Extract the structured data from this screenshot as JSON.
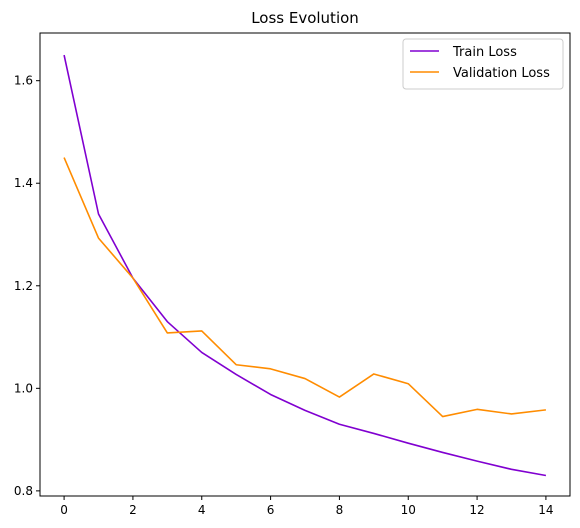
{
  "chart_data": {
    "type": "line",
    "title": "Loss Evolution",
    "xlabel": "",
    "ylabel": "",
    "xlim": [
      -0.7,
      14.7
    ],
    "ylim": [
      0.79,
      1.693
    ],
    "xticks": [
      0,
      2,
      4,
      6,
      8,
      10,
      12,
      14
    ],
    "yticks": [
      0.8,
      1.0,
      1.2,
      1.4,
      1.6
    ],
    "grid": false,
    "legend_position": "top-right",
    "x": [
      0,
      1,
      2,
      3,
      4,
      5,
      6,
      7,
      8,
      9,
      10,
      11,
      12,
      13,
      14
    ],
    "series": [
      {
        "name": "Train Loss",
        "color": "#8000d0",
        "values": [
          1.65,
          1.34,
          1.215,
          1.13,
          1.07,
          1.027,
          0.988,
          0.957,
          0.93,
          0.912,
          0.893,
          0.875,
          0.858,
          0.842,
          0.83
        ]
      },
      {
        "name": "Validation Loss",
        "color": "#ff8c00",
        "values": [
          1.45,
          1.293,
          1.215,
          1.108,
          1.112,
          1.046,
          1.038,
          1.019,
          0.983,
          1.028,
          1.009,
          0.945,
          0.959,
          0.95,
          0.958
        ]
      }
    ]
  }
}
